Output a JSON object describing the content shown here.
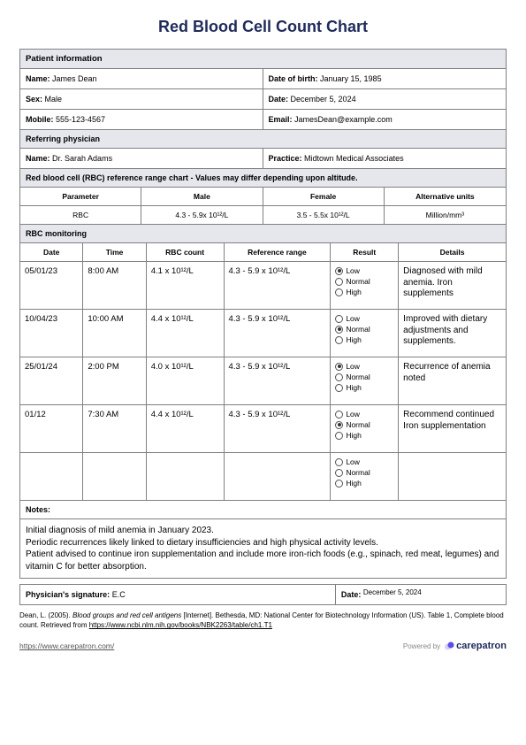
{
  "title": "Red Blood Cell Count Chart",
  "colors": {
    "title": "#1e2a5a",
    "section_bg": "#e5e7ed",
    "border": "#808080",
    "text": "#000000"
  },
  "patient": {
    "section_title": "Patient information",
    "name_label": "Name:",
    "name": "James Dean",
    "dob_label": "Date of birth:",
    "dob": "January 15, 1985",
    "sex_label": "Sex:",
    "sex": "Male",
    "date_label": "Date:",
    "date": "December 5, 2024",
    "mobile_label": "Mobile:",
    "mobile": "555-123-4567",
    "email_label": "Email:",
    "email": "JamesDean@example.com"
  },
  "physician": {
    "section_title": "Referring physician",
    "name_label": "Name:",
    "name": "Dr. Sarah Adams",
    "practice_label": "Practice:",
    "practice": "Midtown Medical Associates"
  },
  "reference": {
    "section_title": "Red blood cell (RBC) reference range chart - Values may differ depending upon altitude.",
    "headers": {
      "parameter": "Parameter",
      "male": "Male",
      "female": "Female",
      "alt_units": "Alternative units"
    },
    "row": {
      "parameter": "RBC",
      "male": "4.3 - 5.9x 10¹²/L",
      "female": "3.5 - 5.5x 10¹²/L",
      "alt_units": "Million/mm³"
    }
  },
  "monitoring": {
    "section_title": "RBC monitoring",
    "headers": {
      "date": "Date",
      "time": "Time",
      "count": "RBC count",
      "range": "Reference range",
      "result": "Result",
      "details": "Details"
    },
    "result_labels": {
      "low": "Low",
      "normal": "Normal",
      "high": "High"
    },
    "rows": [
      {
        "date": "05/01/23",
        "time": "8:00 AM",
        "count": "4.1 x 10¹²/L",
        "range": "4.3 - 5.9 x 10¹²/L",
        "result": "low",
        "details": "Diagnosed with mild anemia. Iron supplements"
      },
      {
        "date": "10/04/23",
        "time": "10:00 AM",
        "count": "4.4 x 10¹²/L",
        "range": "4.3 - 5.9 x 10¹²/L",
        "result": "normal",
        "details": "Improved with dietary adjustments and supplements."
      },
      {
        "date": "25/01/24",
        "time": "2:00 PM",
        "count": "4.0 x 10¹²/L",
        "range": "4.3 - 5.9 x 10¹²/L",
        "result": "low",
        "details": "Recurrence of anemia noted"
      },
      {
        "date": "01/12",
        "time": "7:30 AM",
        "count": "4.4 x 10¹²/L",
        "range": "4.3 - 5.9 x 10¹²/L",
        "result": "normal",
        "details": "Recommend continued Iron supplementation"
      },
      {
        "date": "",
        "time": "",
        "count": "",
        "range": "",
        "result": "",
        "details": ""
      }
    ]
  },
  "notes": {
    "label": "Notes:",
    "content": "Initial diagnosis of mild anemia in January 2023.\nPeriodic recurrences likely linked to dietary insufficiencies and high physical activity levels.\nPatient advised to continue iron supplementation and include more iron-rich foods (e.g., spinach, red meat, legumes) and vitamin C for better absorption."
  },
  "signature": {
    "sig_label": "Physician's signature:",
    "sig_value": "E.C",
    "date_label": "Date:",
    "date_value": "December 5, 2024"
  },
  "citation": {
    "prefix": "Dean, L. (2005). ",
    "italic": "Blood groups and red cell antigens ",
    "mid": "[Internet]. Bethesda, MD: National Center for Biotechnology Information (US). Table 1, Complete blood count. Retrieved from ",
    "link": "https://www.ncbi.nlm.nih.gov/books/NBK2263/table/ch1.T1"
  },
  "footer": {
    "link": "https://www.carepatron.com/",
    "powered": "Powered by",
    "brand": "carepatron"
  },
  "column_widths": {
    "date": "13%",
    "time": "13%",
    "count": "16%",
    "range": "22%",
    "result": "14%",
    "details": "22%",
    "ref_param": "25%",
    "ref_male": "25%",
    "ref_female": "25%",
    "ref_alt": "25%"
  }
}
